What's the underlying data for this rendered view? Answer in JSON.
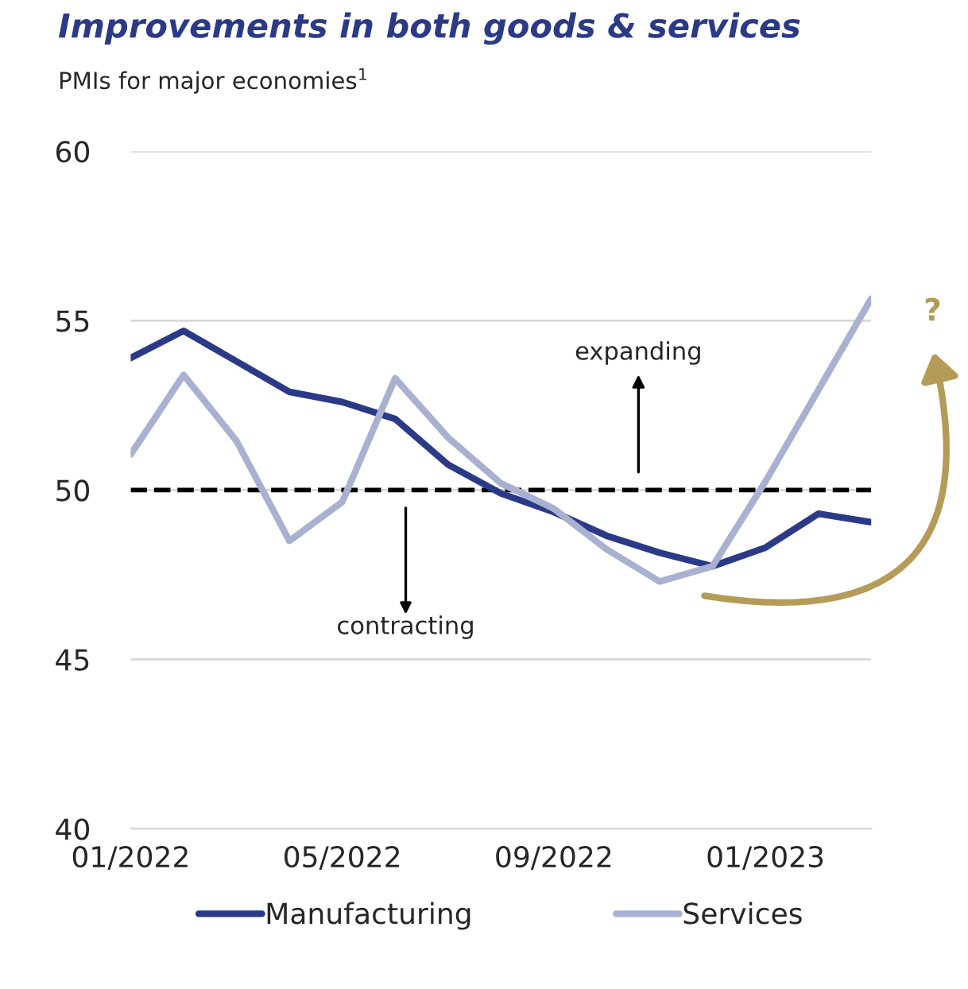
{
  "chart_data": {
    "type": "line",
    "title": "Improvements in both goods & services",
    "subtitle": "PMIs for major economies$^{1}$",
    "categories": [
      "01/2022",
      null,
      null,
      null,
      "05/2022",
      null,
      null,
      null,
      "09/2022",
      null,
      null,
      null,
      "01/2023",
      null,
      null
    ],
    "series": [
      {
        "name": "Manufacturing",
        "color": "#2b3a87",
        "values": [
          53.9,
          54.7,
          53.8,
          52.9,
          52.6,
          52.1,
          50.75,
          49.9,
          49.35,
          48.65,
          48.15,
          47.75,
          48.3,
          49.3,
          49.05
        ]
      },
      {
        "name": "Services",
        "color": "#a9b1d1",
        "values": [
          51.05,
          53.4,
          51.45,
          48.5,
          49.65,
          53.3,
          51.55,
          50.2,
          49.45,
          48.25,
          47.3,
          47.75,
          50.25,
          52.95,
          55.65
        ]
      }
    ],
    "ylim": [
      40,
      60
    ],
    "yticks": [
      40,
      45,
      50,
      55,
      60
    ],
    "grid": "y",
    "legend": "bottom",
    "line_style": "solid",
    "marker": "none",
    "ref_lines": [
      {
        "axis": "y",
        "value": 50,
        "color": "#000000",
        "line_style": "dashed"
      }
    ],
    "annotations": [
      "expanding",
      "contracting",
      "?"
    ]
  }
}
